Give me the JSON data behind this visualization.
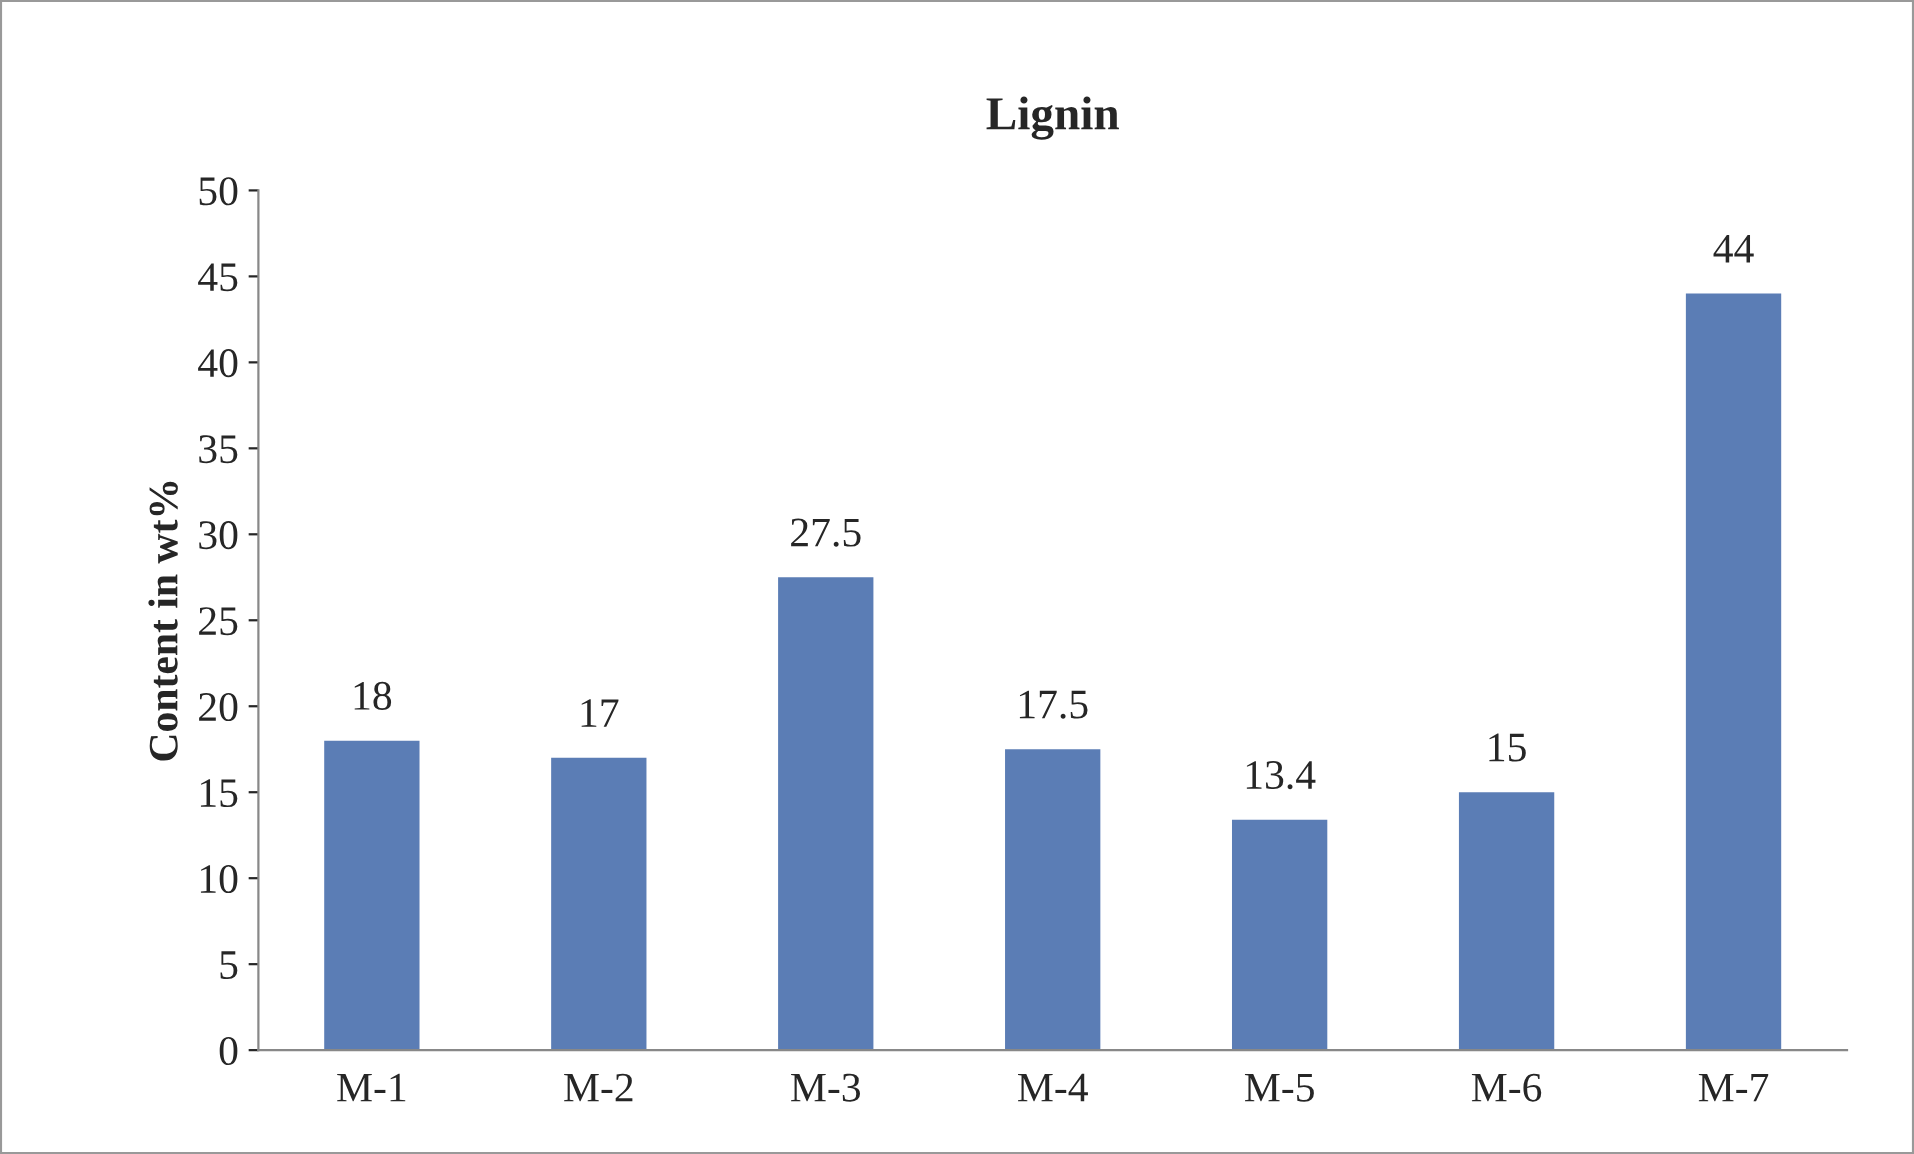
{
  "chart_data": {
    "type": "bar",
    "title": "Lignin",
    "ylabel": "Content in wt%",
    "categories": [
      "M-1",
      "M-2",
      "M-3",
      "M-4",
      "M-5",
      "M-6",
      "M-7"
    ],
    "values": [
      18,
      17,
      27.5,
      17.5,
      13.4,
      15,
      44
    ],
    "color": "#5b7db5",
    "ylim": [
      0,
      50
    ],
    "yticks": [
      0,
      5,
      10,
      15,
      20,
      25,
      30,
      35,
      40,
      45,
      50
    ],
    "data_labels": true,
    "grid": false,
    "legend": false
  }
}
